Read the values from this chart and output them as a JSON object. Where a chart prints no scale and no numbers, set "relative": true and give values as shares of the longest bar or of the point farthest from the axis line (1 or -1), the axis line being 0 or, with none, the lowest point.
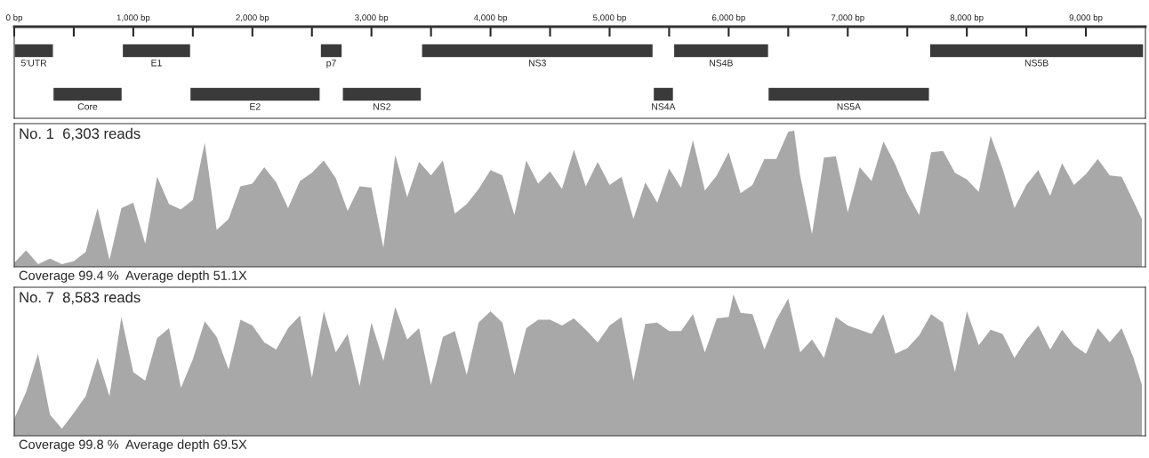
{
  "chart_data": [
    {
      "type": "bar",
      "orientation": "horizontal",
      "categories": [
        null,
        null
      ],
      "xlim": [
        0,
        9500
      ],
      "xticks": [
        {
          "value": 0,
          "label": "0 bp"
        },
        {
          "value": 500,
          "label": null
        },
        {
          "value": 1000,
          "label": "1,000 bp"
        },
        {
          "value": 1500,
          "label": null
        },
        {
          "value": 2000,
          "label": "2,000 bp"
        },
        {
          "value": 2500,
          "label": null
        },
        {
          "value": 3000,
          "label": "3,000 bp"
        },
        {
          "value": 3500,
          "label": null
        },
        {
          "value": 4000,
          "label": "4,000 bp"
        },
        {
          "value": 4500,
          "label": null
        },
        {
          "value": 5000,
          "label": "5,000 bp"
        },
        {
          "value": 5500,
          "label": null
        },
        {
          "value": 6000,
          "label": "6,000 bp"
        },
        {
          "value": 6500,
          "label": null
        },
        {
          "value": 7000,
          "label": "7,000 bp"
        },
        {
          "value": 7500,
          "label": null
        },
        {
          "value": 8000,
          "label": "8,000 bp"
        },
        {
          "value": 8500,
          "label": null
        },
        {
          "value": 9000,
          "label": "9,000 bp"
        }
      ],
      "tick_labels": "x",
      "series": [
        {
          "name": "5'UTR",
          "color": "#3a3a3a",
          "values": [
            330,
            null
          ],
          "base": [
            0,
            null
          ]
        },
        {
          "name": "E1",
          "color": "#3a3a3a",
          "values": [
            575,
            null
          ],
          "base": [
            907,
            null
          ]
        },
        {
          "name": "p7",
          "color": "#3a3a3a",
          "values": [
            185,
            null
          ],
          "base": [
            2570,
            null
          ]
        },
        {
          "name": "NS3",
          "color": "#3a3a3a",
          "values": [
            1946,
            null
          ],
          "base": [
            3420,
            null
          ]
        },
        {
          "name": "NS4B",
          "color": "#3a3a3a",
          "values": [
            799,
            null
          ],
          "base": [
            5537,
            null
          ]
        },
        {
          "name": "NS5B",
          "color": "#3a3a3a",
          "values": [
            1798,
            null
          ],
          "base": [
            7687,
            null
          ]
        },
        {
          "name": "Core",
          "color": "#3a3a3a",
          "values": [
            null,
            582
          ],
          "base": [
            null,
            325
          ]
        },
        {
          "name": "E2",
          "color": "#3a3a3a",
          "values": [
            null,
            1095
          ],
          "base": [
            null,
            1475
          ]
        },
        {
          "name": "NS2",
          "color": "#3a3a3a",
          "values": [
            null,
            665
          ],
          "base": [
            null,
            2755
          ]
        },
        {
          "name": "NS4A",
          "color": "#3a3a3a",
          "values": [
            null,
            171
          ],
          "base": [
            null,
            5366
          ]
        },
        {
          "name": "NS5A",
          "color": "#3a3a3a",
          "values": [
            null,
            1357
          ],
          "base": [
            null,
            6330
          ]
        }
      ]
    },
    {
      "type": "area",
      "relative": true,
      "title": "No. 1  6,303 reads",
      "annotations": [
        "Coverage 99.4 %  Average depth 51.1X"
      ],
      "xlim": [
        0,
        9500
      ],
      "tick_labels": false,
      "x": [
        0,
        100,
        200,
        300,
        400,
        500,
        600,
        700,
        800,
        900,
        1000,
        1100,
        1200,
        1300,
        1400,
        1500,
        1600,
        1700,
        1800,
        1900,
        2000,
        2100,
        2200,
        2300,
        2400,
        2500,
        2600,
        2700,
        2800,
        2900,
        3000,
        3100,
        3200,
        3300,
        3400,
        3500,
        3600,
        3700,
        3800,
        3900,
        4000,
        4100,
        4200,
        4300,
        4400,
        4500,
        4600,
        4700,
        4800,
        4900,
        5000,
        5100,
        5200,
        5300,
        5400,
        5500,
        5600,
        5700,
        5800,
        5900,
        6000,
        6100,
        6200,
        6300,
        6400,
        6500,
        6550,
        6600,
        6700,
        6800,
        6900,
        7000,
        7100,
        7200,
        7300,
        7400,
        7500,
        7600,
        7700,
        7800,
        7900,
        8000,
        8100,
        8200,
        8300,
        8400,
        8500,
        8600,
        8700,
        8800,
        8900,
        9000,
        9100,
        9200,
        9300,
        9400,
        9470
      ],
      "series": [
        {
          "color": "#a8a8a8",
          "values": [
            0.03,
            0.12,
            0.02,
            0.06,
            0.02,
            0.04,
            0.11,
            0.43,
            0.05,
            0.43,
            0.47,
            0.17,
            0.66,
            0.46,
            0.42,
            0.49,
            0.91,
            0.27,
            0.35,
            0.59,
            0.61,
            0.73,
            0.62,
            0.43,
            0.63,
            0.69,
            0.78,
            0.65,
            0.41,
            0.59,
            0.58,
            0.14,
            0.82,
            0.51,
            0.77,
            0.67,
            0.78,
            0.39,
            0.46,
            0.57,
            0.71,
            0.67,
            0.38,
            0.78,
            0.61,
            0.7,
            0.57,
            0.86,
            0.59,
            0.77,
            0.6,
            0.66,
            0.35,
            0.62,
            0.47,
            0.72,
            0.58,
            0.93,
            0.56,
            0.67,
            0.84,
            0.54,
            0.6,
            0.79,
            0.79,
            0.99,
            1,
            0.67,
            0.24,
            0.8,
            0.81,
            0.4,
            0.73,
            0.63,
            0.92,
            0.75,
            0.54,
            0.38,
            0.84,
            0.85,
            0.69,
            0.64,
            0.55,
            0.96,
            0.72,
            0.43,
            0.6,
            0.71,
            0.52,
            0.76,
            0.6,
            0.68,
            0.79,
            0.67,
            0.66,
            0.48,
            0.35
          ]
        }
      ]
    },
    {
      "type": "area",
      "relative": true,
      "title": "No. 7  8,583 reads",
      "annotations": [
        "Coverage 99.8 %  Average depth 69.5X"
      ],
      "xlim": [
        0,
        9500
      ],
      "tick_labels": false,
      "x": [
        0,
        100,
        200,
        300,
        400,
        500,
        600,
        700,
        800,
        900,
        1000,
        1100,
        1200,
        1300,
        1400,
        1500,
        1600,
        1700,
        1800,
        1900,
        2000,
        2100,
        2200,
        2300,
        2400,
        2500,
        2600,
        2700,
        2800,
        2900,
        3000,
        3100,
        3200,
        3300,
        3400,
        3500,
        3600,
        3700,
        3800,
        3900,
        4000,
        4100,
        4200,
        4300,
        4400,
        4500,
        4600,
        4700,
        4800,
        4900,
        5000,
        5100,
        5200,
        5300,
        5400,
        5500,
        5600,
        5700,
        5800,
        5900,
        6000,
        6040,
        6100,
        6200,
        6300,
        6400,
        6500,
        6600,
        6700,
        6800,
        6900,
        7000,
        7100,
        7200,
        7300,
        7400,
        7500,
        7600,
        7700,
        7800,
        7900,
        8000,
        8100,
        8200,
        8300,
        8400,
        8500,
        8600,
        8700,
        8800,
        8900,
        9000,
        9100,
        9200,
        9300,
        9400,
        9470
      ],
      "series": [
        {
          "color": "#a8a8a8",
          "values": [
            0.12,
            0.31,
            0.58,
            0.15,
            0.05,
            0.16,
            0.28,
            0.55,
            0.28,
            0.84,
            0.45,
            0.39,
            0.69,
            0.76,
            0.34,
            0.54,
            0.81,
            0.7,
            0.47,
            0.82,
            0.78,
            0.66,
            0.61,
            0.76,
            0.85,
            0.41,
            0.88,
            0.59,
            0.72,
            0.35,
            0.8,
            0.53,
            0.91,
            0.68,
            0.76,
            0.36,
            0.7,
            0.74,
            0.43,
            0.8,
            0.88,
            0.8,
            0.43,
            0.76,
            0.82,
            0.82,
            0.78,
            0.83,
            0.75,
            0.66,
            0.78,
            0.84,
            0.39,
            0.79,
            0.8,
            0.74,
            0.74,
            0.86,
            0.59,
            0.83,
            0.84,
            1,
            0.87,
            0.86,
            0.61,
            0.82,
            0.97,
            0.59,
            0.68,
            0.55,
            0.84,
            0.78,
            0.75,
            0.72,
            0.86,
            0.58,
            0.62,
            0.71,
            0.86,
            0.8,
            0.45,
            0.88,
            0.64,
            0.75,
            0.72,
            0.55,
            0.68,
            0.78,
            0.61,
            0.75,
            0.64,
            0.58,
            0.76,
            0.66,
            0.76,
            0.55,
            0.36
          ]
        }
      ]
    }
  ]
}
